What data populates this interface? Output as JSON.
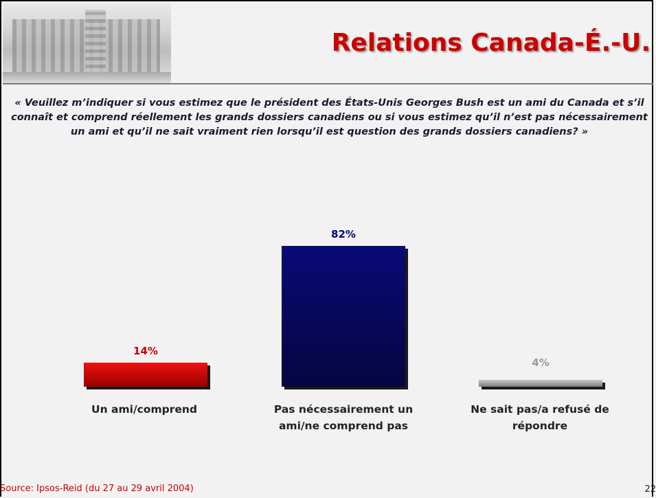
{
  "header": {
    "title": "Relations Canada-É.-U."
  },
  "question": "« Veuillez m’indiquer si vous estimez que le président des États-Unis Georges Bush est un ami du Canada et s’il connaît et comprend réellement les grands dossiers canadiens ou si vous estimez qu’il n’est pas nécessairement un ami et qu’il ne sait vraiment rien lorsqu’il est question des grands dossiers canadiens? »",
  "chart_data": {
    "type": "bar",
    "categories": [
      "Un ami/comprend",
      "Pas nécessairement un ami/ne comprend pas",
      "Ne sait pas/a refusé de répondre"
    ],
    "values": [
      14,
      82,
      4
    ],
    "value_labels": [
      "14%",
      "82%",
      "4%"
    ],
    "colors": [
      "#cc0000",
      "#000066",
      "#999999"
    ],
    "label_colors": [
      "#cc0000",
      "#000080",
      "#999999"
    ],
    "ylim": [
      0,
      100
    ],
    "grid": false
  },
  "footer": {
    "source": "Source: Ipsos-Reid (du 27 au 29 avril 2004)",
    "page": "22"
  }
}
